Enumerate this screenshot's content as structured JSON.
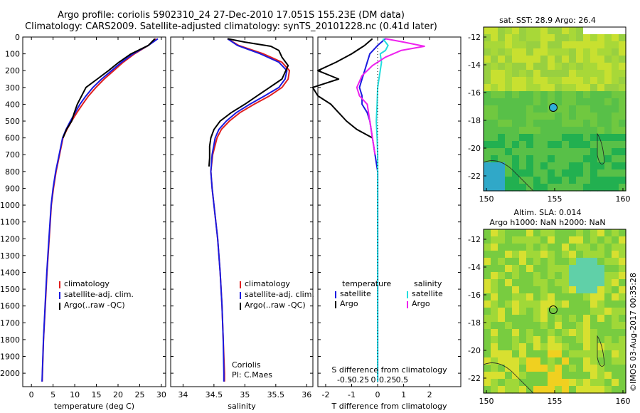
{
  "title": {
    "line1": "Argo profile: coriolis 5902310_24 27-Dec-2010 17.051S 155.23E (DM data)",
    "line2": "Climatology: CARS2009. Satellite-adjusted climatology: synTS_20101228.nc (0.41d later)"
  },
  "colors": {
    "climatology": "#e02020",
    "satellite": "#1a1adf",
    "argo": "#000000",
    "sal_satellite": "#22dddd",
    "sal_argo": "#ee22ee"
  },
  "chart_data": [
    {
      "type": "line",
      "id": "temperature",
      "xlabel": "temperature (deg C)",
      "xlim": [
        -2,
        31
      ],
      "xticks": [
        0,
        5,
        10,
        15,
        20,
        25,
        30
      ],
      "ylim": [
        2080,
        0
      ],
      "yticks": [
        0,
        100,
        200,
        300,
        400,
        500,
        600,
        700,
        800,
        900,
        1000,
        1100,
        1200,
        1300,
        1400,
        1500,
        1600,
        1700,
        1800,
        1900,
        2000
      ],
      "legend": [
        "climatology",
        "satellite-adj. clim.",
        "Argo(..raw -QC)"
      ],
      "series": [
        {
          "name": "climatology",
          "color_key": "climatology",
          "points": [
            [
              28.8,
              10
            ],
            [
              27,
              50
            ],
            [
              23.8,
              100
            ],
            [
              21.2,
              150
            ],
            [
              19,
              200
            ],
            [
              16.8,
              250
            ],
            [
              14.9,
              300
            ],
            [
              13.2,
              350
            ],
            [
              11.8,
              400
            ],
            [
              10.5,
              450
            ],
            [
              9.3,
              500
            ],
            [
              8.2,
              550
            ],
            [
              7.3,
              600
            ],
            [
              6.5,
              700
            ],
            [
              5.7,
              800
            ],
            [
              5.1,
              900
            ],
            [
              4.6,
              1000
            ],
            [
              4.1,
              1200
            ],
            [
              3.6,
              1400
            ],
            [
              3.2,
              1600
            ],
            [
              2.8,
              1800
            ],
            [
              2.55,
              2000
            ],
            [
              2.5,
              2050
            ]
          ]
        },
        {
          "name": "satellite-adj. clim.",
          "color_key": "satellite",
          "points": [
            [
              29.2,
              10
            ],
            [
              27,
              50
            ],
            [
              23.5,
              100
            ],
            [
              20.8,
              150
            ],
            [
              18.5,
              200
            ],
            [
              16.2,
              250
            ],
            [
              14.2,
              300
            ],
            [
              12.6,
              350
            ],
            [
              11.2,
              400
            ],
            [
              10.1,
              450
            ],
            [
              9,
              500
            ],
            [
              8,
              550
            ],
            [
              7.2,
              600
            ],
            [
              6.4,
              700
            ],
            [
              5.6,
              800
            ],
            [
              5,
              900
            ],
            [
              4.55,
              1000
            ],
            [
              4.05,
              1200
            ],
            [
              3.55,
              1400
            ],
            [
              3.15,
              1600
            ],
            [
              2.78,
              1800
            ],
            [
              2.52,
              2000
            ],
            [
              2.45,
              2050
            ]
          ]
        },
        {
          "name": "Argo(..raw -QC)",
          "color_key": "argo",
          "points": [
            [
              28.5,
              10
            ],
            [
              27,
              50
            ],
            [
              23,
              100
            ],
            [
              20.2,
              150
            ],
            [
              17.8,
              200
            ],
            [
              15.2,
              250
            ],
            [
              12.6,
              300
            ],
            [
              11.6,
              350
            ],
            [
              10.6,
              400
            ],
            [
              9.9,
              450
            ],
            [
              9.3,
              500
            ],
            [
              8.1,
              550
            ],
            [
              7.3,
              600
            ]
          ]
        }
      ]
    },
    {
      "type": "line",
      "id": "salinity",
      "xlabel": "salinity",
      "xlim": [
        33.8,
        36.1
      ],
      "xticks": [
        34,
        34.5,
        35,
        35.5,
        36
      ],
      "ylim": [
        2080,
        0
      ],
      "legend": [
        "climatology",
        "satellite-adj. clim.",
        "Argo(..raw -QC)"
      ],
      "annotation": [
        "Coriolis",
        "PI: C.Maes"
      ],
      "series": [
        {
          "name": "climatology",
          "color_key": "climatology",
          "points": [
            [
              34.72,
              10
            ],
            [
              34.9,
              50
            ],
            [
              35.3,
              100
            ],
            [
              35.6,
              150
            ],
            [
              35.72,
              200
            ],
            [
              35.7,
              250
            ],
            [
              35.6,
              300
            ],
            [
              35.4,
              350
            ],
            [
              35.15,
              400
            ],
            [
              34.92,
              450
            ],
            [
              34.75,
              500
            ],
            [
              34.62,
              550
            ],
            [
              34.55,
              600
            ],
            [
              34.48,
              700
            ],
            [
              34.45,
              800
            ],
            [
              34.47,
              900
            ],
            [
              34.5,
              1000
            ],
            [
              34.56,
              1200
            ],
            [
              34.6,
              1400
            ],
            [
              34.63,
              1600
            ],
            [
              34.65,
              1800
            ],
            [
              34.67,
              2000
            ],
            [
              34.67,
              2050
            ]
          ]
        },
        {
          "name": "satellite-adj. clim.",
          "color_key": "satellite",
          "points": [
            [
              34.72,
              10
            ],
            [
              34.88,
              50
            ],
            [
              35.25,
              100
            ],
            [
              35.55,
              150
            ],
            [
              35.68,
              200
            ],
            [
              35.65,
              250
            ],
            [
              35.55,
              300
            ],
            [
              35.32,
              350
            ],
            [
              35.08,
              400
            ],
            [
              34.86,
              450
            ],
            [
              34.7,
              500
            ],
            [
              34.58,
              550
            ],
            [
              34.52,
              600
            ],
            [
              34.47,
              700
            ],
            [
              34.45,
              800
            ],
            [
              34.47,
              900
            ],
            [
              34.5,
              1000
            ],
            [
              34.56,
              1200
            ],
            [
              34.6,
              1400
            ],
            [
              34.63,
              1600
            ],
            [
              34.65,
              1800
            ],
            [
              34.66,
              2000
            ],
            [
              34.66,
              2050
            ]
          ]
        },
        {
          "name": "Argo(..raw -QC)",
          "color_key": "argo",
          "points": [
            [
              34.72,
              10
            ],
            [
              35,
              30
            ],
            [
              35.42,
              55
            ],
            [
              35.55,
              80
            ],
            [
              35.6,
              120
            ],
            [
              35.7,
              170
            ],
            [
              35.6,
              250
            ],
            [
              35.4,
              300
            ],
            [
              35.2,
              350
            ],
            [
              35,
              400
            ],
            [
              34.78,
              450
            ],
            [
              34.6,
              500
            ],
            [
              34.5,
              550
            ],
            [
              34.45,
              600
            ],
            [
              34.43,
              650
            ],
            [
              34.43,
              720
            ],
            [
              34.42,
              770
            ]
          ]
        }
      ]
    },
    {
      "type": "line",
      "id": "difference",
      "xlabel": "T difference from climatology",
      "xlim": [
        -2.3,
        3.2
      ],
      "xticks": [
        -2,
        -1,
        0,
        1,
        2
      ],
      "xlabel_top": "S difference from climatology",
      "xticks_top": [
        "-0.5",
        "-0.25",
        "0",
        "0.25",
        "0.5"
      ],
      "legend_left": [
        "temperature",
        "satellite",
        "Argo"
      ],
      "legend_right": [
        "salinity",
        "satellite",
        "Argo"
      ],
      "ylim": [
        2080,
        0
      ],
      "series": [
        {
          "name": "temperature satellite",
          "color_key": "satellite",
          "points": [
            [
              0.3,
              10
            ],
            [
              0,
              50
            ],
            [
              -0.3,
              100
            ],
            [
              -0.4,
              150
            ],
            [
              -0.5,
              200
            ],
            [
              -0.6,
              250
            ],
            [
              -0.7,
              300
            ],
            [
              -0.6,
              350
            ],
            [
              -0.6,
              400
            ],
            [
              -0.4,
              450
            ],
            [
              -0.3,
              500
            ],
            [
              -0.2,
              600
            ],
            [
              -0.1,
              700
            ],
            [
              0,
              800
            ],
            [
              0,
              1000
            ],
            [
              0,
              1500
            ],
            [
              0,
              2000
            ],
            [
              0,
              2050
            ]
          ]
        },
        {
          "name": "temperature Argo",
          "color_key": "argo",
          "points": [
            [
              -0.2,
              10
            ],
            [
              -0.5,
              50
            ],
            [
              -1,
              100
            ],
            [
              -1.6,
              150
            ],
            [
              -2.3,
              200
            ],
            [
              -1.5,
              250
            ],
            [
              -2.5,
              300
            ],
            [
              -2.3,
              350
            ],
            [
              -1.8,
              400
            ],
            [
              -1.5,
              450
            ],
            [
              -1.2,
              500
            ],
            [
              -0.8,
              550
            ],
            [
              -0.2,
              600
            ]
          ]
        },
        {
          "name": "salinity satellite",
          "color_key": "sal_satellite",
          "points": [
            [
              0.2,
              10
            ],
            [
              0.4,
              50
            ],
            [
              0.3,
              80
            ],
            [
              0.1,
              100
            ],
            [
              0.15,
              150
            ],
            [
              0.1,
              200
            ],
            [
              0.05,
              250
            ],
            [
              0,
              300
            ],
            [
              -0.02,
              400
            ],
            [
              -0.05,
              500
            ],
            [
              -0.02,
              600
            ],
            [
              0,
              700
            ],
            [
              0,
              800
            ],
            [
              0,
              1000
            ],
            [
              0,
              1500
            ],
            [
              0,
              2000
            ],
            [
              0,
              2050
            ]
          ]
        },
        {
          "name": "salinity Argo",
          "color_key": "sal_argo",
          "points": [
            [
              0.3,
              10
            ],
            [
              1,
              30
            ],
            [
              1.8,
              55
            ],
            [
              0.9,
              80
            ],
            [
              0.3,
              120
            ],
            [
              -0.2,
              170
            ],
            [
              -0.6,
              230
            ],
            [
              -0.8,
              300
            ],
            [
              -0.7,
              350
            ],
            [
              -0.4,
              400
            ],
            [
              -0.3,
              500
            ],
            [
              -0.2,
              600
            ],
            [
              -0.1,
              700
            ]
          ]
        }
      ]
    }
  ],
  "maps": [
    {
      "id": "sst",
      "title_lines": [
        "sat. SST: 28.9 Argo: 26.4"
      ],
      "xticks": [
        "150",
        "155",
        "160"
      ],
      "yticks": [
        "-12",
        "-14",
        "-16",
        "-18",
        "-20",
        "-22"
      ]
    },
    {
      "id": "sla",
      "title_lines": [
        "Altim. SLA: 0.014",
        "Argo h1000: NaN h2000: NaN"
      ],
      "xticks": [
        "150",
        "155",
        "160"
      ],
      "yticks": [
        "-12",
        "-14",
        "-16",
        "-18",
        "-20",
        "-22"
      ]
    }
  ],
  "credit": "©IMOS 03-Aug-2017 00:35:28"
}
